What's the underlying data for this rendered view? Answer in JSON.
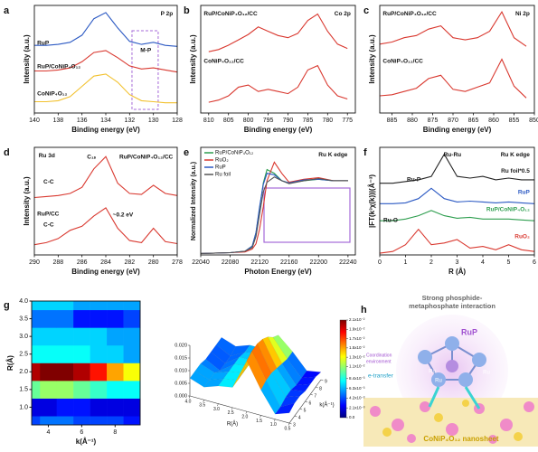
{
  "chart_data": [
    {
      "panel": "a",
      "type": "line",
      "xlabel": "Binding energy (eV)",
      "ylabel": "Intensity (a.u.)",
      "x": [
        140,
        139,
        138,
        137,
        136,
        135,
        134,
        133,
        132,
        131,
        130,
        129,
        128
      ],
      "xlim": [
        140,
        128
      ],
      "ylim": [
        0,
        10.5
      ],
      "xticks": [
        140,
        138,
        136,
        134,
        132,
        130,
        128
      ],
      "annotations": [
        "P 2p",
        "M-P"
      ],
      "series": [
        {
          "name": "RuP",
          "color": "#2b59c3",
          "values": [
            6.6,
            6.6,
            6.7,
            6.9,
            7.6,
            9.2,
            9.8,
            8.3,
            7.0,
            6.7,
            6.9,
            6.6,
            6.5
          ]
        },
        {
          "name": "RuP/CoNiP₄O₁₂",
          "color": "#d9382f",
          "values": [
            4.1,
            4.1,
            4.2,
            4.4,
            5.0,
            5.9,
            6.1,
            5.4,
            4.6,
            4.3,
            4.4,
            4.2,
            4.0
          ]
        },
        {
          "name": "CoNiP₄O₁₂",
          "color": "#f2c12e",
          "values": [
            1.1,
            1.1,
            1.2,
            1.6,
            2.6,
            3.6,
            3.8,
            3.0,
            1.8,
            1.2,
            1.1,
            1.0,
            1.0
          ]
        }
      ]
    },
    {
      "panel": "b",
      "type": "line",
      "xlabel": "Binding energy (eV)",
      "ylabel": "Intensity (a.u.)",
      "x": [
        810,
        807.5,
        805,
        802.5,
        800,
        797.5,
        795,
        792.5,
        790,
        787.5,
        785,
        782.5,
        780,
        777.5,
        775
      ],
      "xlim": [
        812,
        773
      ],
      "ylim": [
        0,
        10
      ],
      "xticks": [
        810,
        805,
        800,
        795,
        790,
        785,
        780,
        775
      ],
      "annotations": [
        "Co 2p"
      ],
      "series": [
        {
          "name": "RuP/CoNiP₄O₁₂/CC",
          "color": "#d9382f",
          "values": [
            5.7,
            5.9,
            6.3,
            6.8,
            7.3,
            8.0,
            7.6,
            7.2,
            7.0,
            7.4,
            8.6,
            9.2,
            7.6,
            6.4,
            6.0
          ]
        },
        {
          "name": "CoNiP₄O₁₂/CC",
          "color": "#d9382f",
          "values": [
            1.0,
            1.2,
            1.6,
            2.4,
            2.6,
            2.0,
            2.2,
            2.0,
            1.8,
            2.4,
            4.0,
            4.4,
            2.6,
            1.6,
            1.3
          ]
        }
      ]
    },
    {
      "panel": "c",
      "type": "line",
      "xlabel": "Binding energy (eV)",
      "ylabel": "Intensity (a.u.)",
      "x": [
        888,
        885,
        882,
        879,
        876,
        873,
        870,
        867,
        864,
        861,
        858,
        855,
        852
      ],
      "xlim": [
        888,
        850
      ],
      "ylim": [
        0,
        10
      ],
      "xticks": [
        885,
        880,
        875,
        870,
        865,
        860,
        855,
        850
      ],
      "annotations": [
        "Ni 2p"
      ],
      "series": [
        {
          "name": "RuP/CoNiP₄O₁₂/CC",
          "color": "#d9382f",
          "values": [
            6.4,
            6.6,
            7.0,
            7.2,
            7.8,
            8.1,
            7.0,
            6.8,
            7.0,
            7.6,
            9.4,
            7.0,
            6.2
          ]
        },
        {
          "name": "CoNiP₄O₁₂/CC",
          "color": "#d9382f",
          "values": [
            1.6,
            1.7,
            2.0,
            2.3,
            3.2,
            3.5,
            2.2,
            2.0,
            2.4,
            2.8,
            5.0,
            2.5,
            1.4
          ]
        }
      ]
    },
    {
      "panel": "d",
      "type": "line",
      "xlabel": "Binding energy (eV)",
      "ylabel": "Intensity (a.u.)",
      "x": [
        290,
        289,
        288,
        287,
        286,
        285,
        284,
        283,
        282,
        281,
        280,
        279,
        278
      ],
      "xlim": [
        290,
        278
      ],
      "ylim": [
        0,
        10.5
      ],
      "xticks": [
        290,
        288,
        286,
        284,
        282,
        280,
        278
      ],
      "annotations": [
        "Ru 3d",
        "C₁ₛ",
        "C-C",
        "C-C",
        "~0.2 eV"
      ],
      "series": [
        {
          "name": "RuP/CoNiP₄O₁₂/CC",
          "color": "#d9382f",
          "values": [
            5.6,
            5.7,
            5.8,
            6.0,
            6.6,
            8.4,
            9.6,
            7.0,
            6.0,
            5.9,
            6.8,
            6.0,
            5.8
          ]
        },
        {
          "name": "RuP/CC",
          "color": "#d9382f",
          "values": [
            1.0,
            1.2,
            1.6,
            2.4,
            2.8,
            3.8,
            4.6,
            2.6,
            1.4,
            1.2,
            2.6,
            1.3,
            1.1
          ]
        }
      ]
    },
    {
      "panel": "e",
      "type": "line",
      "xlabel": "Photon Energy (eV)",
      "ylabel": "Normalized Intensity (a.u.)",
      "x": [
        22040,
        22080,
        22100,
        22110,
        22115,
        22120,
        22125,
        22130,
        22140,
        22150,
        22160,
        22180,
        22200,
        22220,
        22240
      ],
      "xlim": [
        22040,
        22250
      ],
      "ylim": [
        0,
        1.45
      ],
      "xticks": [
        22040,
        22080,
        22120,
        22160,
        22200,
        22240
      ],
      "annotations": [
        "Ru K edge"
      ],
      "legend": "upper left",
      "series": [
        {
          "name": "RuP/CoNiP₄O₁₂",
          "color": "#2e9e4f",
          "values": [
            0.02,
            0.03,
            0.05,
            0.12,
            0.3,
            0.62,
            0.97,
            1.15,
            1.1,
            1.0,
            0.97,
            1.0,
            1.02,
            1.0,
            1.0
          ]
        },
        {
          "name": "RuO₂",
          "color": "#d9382f",
          "values": [
            0.02,
            0.03,
            0.04,
            0.08,
            0.15,
            0.35,
            0.65,
            1.0,
            1.25,
            1.1,
            0.98,
            1.02,
            1.04,
            1.0,
            1.0
          ]
        },
        {
          "name": "RuP",
          "color": "#2b59c3",
          "values": [
            0.02,
            0.03,
            0.05,
            0.12,
            0.3,
            0.65,
            0.95,
            1.1,
            1.08,
            1.0,
            0.97,
            1.01,
            1.02,
            1.0,
            1.0
          ]
        },
        {
          "name": "Ru foil",
          "color": "#555555",
          "values": [
            0.02,
            0.03,
            0.05,
            0.1,
            0.25,
            0.55,
            0.85,
            0.98,
            1.05,
            1.0,
            0.96,
            1.0,
            1.03,
            1.0,
            1.0
          ]
        }
      ]
    },
    {
      "panel": "f",
      "type": "line",
      "xlabel": "R (Å)",
      "ylabel": "|FT(k³χ(k))|(Å⁻³)",
      "x": [
        0,
        0.5,
        1,
        1.5,
        2,
        2.5,
        3,
        3.5,
        4,
        4.5,
        5,
        5.5,
        6
      ],
      "xlim": [
        0,
        6
      ],
      "ylim": [
        0,
        6.3
      ],
      "xticks": [
        0,
        1,
        2,
        3,
        4,
        5,
        6
      ],
      "annotations": [
        "Ru-Ru",
        "Ru-P",
        "Ru-O",
        "Ru K edge"
      ],
      "series": [
        {
          "name": "Ru foil*0.5",
          "color": "#222222",
          "values": [
            4.2,
            4.2,
            4.3,
            4.4,
            4.6,
            5.9,
            4.6,
            4.5,
            4.6,
            4.4,
            4.5,
            4.4,
            4.4
          ]
        },
        {
          "name": "RuP",
          "color": "#2b59c3",
          "values": [
            3.0,
            3.0,
            3.05,
            3.3,
            3.9,
            3.3,
            3.1,
            3.15,
            3.1,
            3.05,
            3.1,
            3.05,
            3.0
          ]
        },
        {
          "name": "RuP/CoNiP₄O₁₂",
          "color": "#2e9e4f",
          "values": [
            2.0,
            2.0,
            2.1,
            2.3,
            2.6,
            2.3,
            2.15,
            2.2,
            2.1,
            2.1,
            2.1,
            2.05,
            2.0
          ]
        },
        {
          "name": "RuO₂",
          "color": "#d9382f",
          "values": [
            0.1,
            0.2,
            0.6,
            1.5,
            0.6,
            0.7,
            0.9,
            0.4,
            0.5,
            0.3,
            0.6,
            0.3,
            0.2
          ]
        }
      ]
    },
    {
      "panel": "g",
      "type": "heatmap",
      "xlabel": "k(Å⁻¹)",
      "ylabel": "R(Å)",
      "x": [
        3,
        4,
        5,
        6,
        7,
        8,
        9
      ],
      "y": [
        0.5,
        1.0,
        1.5,
        2.0,
        2.5,
        3.0,
        3.5,
        4.0
      ],
      "xlim": [
        3,
        9.5
      ],
      "ylim": [
        0.5,
        4.0
      ],
      "xticks": [
        4,
        6,
        8
      ],
      "yticks": [
        {
          "value": 1,
          "label": "1.0"
        },
        1.5,
        {
          "value": 2,
          "label": "2.0"
        },
        2.5,
        {
          "value": 3,
          "label": "3.0"
        },
        3.5,
        {
          "value": 4,
          "label": "4.0"
        }
      ],
      "values": [
        [
          0.004,
          0.005,
          0.005,
          0.004,
          0.004,
          0.004,
          0.003
        ],
        [
          0.002,
          0.002,
          0.003,
          0.003,
          0.002,
          0.002,
          0.002
        ],
        [
          0.01,
          0.011,
          0.011,
          0.01,
          0.009,
          0.008,
          0.008
        ],
        [
          0.02,
          0.021,
          0.021,
          0.02,
          0.018,
          0.015,
          0.013
        ],
        [
          0.008,
          0.008,
          0.008,
          0.008,
          0.007,
          0.007,
          0.006
        ],
        [
          0.007,
          0.007,
          0.007,
          0.007,
          0.007,
          0.006,
          0.006
        ],
        [
          0.005,
          0.005,
          0.005,
          0.003,
          0.003,
          0.003,
          0.004
        ],
        [
          0.007,
          0.007,
          0.007,
          0.006,
          0.006,
          0.006,
          0.006
        ]
      ],
      "zlim": [
        0,
        0.021
      ],
      "zticks": [
        {
          "value": 0.021,
          "label": "2.1x10⁻²"
        },
        {
          "value": 0.019,
          "label": "1.9x10⁻²"
        },
        {
          "value": 0.017,
          "label": "1.7x10⁻²"
        },
        {
          "value": 0.015,
          "label": "1.5x10⁻²"
        },
        {
          "value": 0.013,
          "label": "1.3x10⁻²"
        },
        {
          "value": 0.011,
          "label": "1.1x10⁻²"
        },
        {
          "value": 0.0084,
          "label": "8.4x10⁻³"
        },
        {
          "value": 0.0063,
          "label": "6.3x10⁻³"
        },
        {
          "value": 0.0042,
          "label": "4.2x10⁻³"
        },
        {
          "value": 0.0021,
          "label": "2.1x10⁻³"
        },
        {
          "value": 0,
          "label": "0.0"
        }
      ]
    },
    {
      "type": "surface",
      "xlabel": "k(Å⁻¹)",
      "ylabel": "R(Å)",
      "x": [
        3,
        4,
        5,
        6,
        7,
        8,
        9
      ],
      "y": [
        0.5,
        1.0,
        1.5,
        2.0,
        2.5,
        3.0,
        3.5,
        4.0
      ],
      "xlim": [
        3,
        9
      ],
      "ylim": [
        0.5,
        4.0
      ],
      "xticks": [
        3,
        4,
        5,
        6,
        7,
        8,
        9
      ],
      "yticks": [
        {
          "value": 4,
          "label": "4.0"
        },
        3.5,
        {
          "value": 3,
          "label": "3.0"
        },
        2.5,
        {
          "value": 2,
          "label": "2.0"
        },
        1.5,
        {
          "value": 1,
          "label": "1.0"
        },
        0.5
      ],
      "values": [
        [
          0.004,
          0.005,
          0.005,
          0.004,
          0.004,
          0.004,
          0.003
        ],
        [
          0.002,
          0.002,
          0.003,
          0.003,
          0.002,
          0.002,
          0.002
        ],
        [
          0.01,
          0.011,
          0.011,
          0.01,
          0.009,
          0.008,
          0.008
        ],
        [
          0.02,
          0.021,
          0.021,
          0.02,
          0.018,
          0.015,
          0.013
        ],
        [
          0.008,
          0.008,
          0.008,
          0.008,
          0.007,
          0.007,
          0.006
        ],
        [
          0.007,
          0.007,
          0.007,
          0.007,
          0.007,
          0.006,
          0.006
        ],
        [
          0.005,
          0.005,
          0.005,
          0.003,
          0.003,
          0.003,
          0.004
        ],
        [
          0.007,
          0.007,
          0.007,
          0.006,
          0.006,
          0.006,
          0.006
        ]
      ],
      "zlim": [
        0,
        0.02
      ],
      "zticks": [
        {
          "value": 0,
          "label": "0.000"
        },
        {
          "value": 0.005,
          "label": "0.005"
        },
        {
          "value": 0.01,
          "label": "0.010"
        },
        {
          "value": 0.015,
          "label": "0.015"
        },
        {
          "value": 0.02,
          "label": "0.020"
        }
      ]
    }
  ],
  "illustration": {
    "panel": "h",
    "title_lines": [
      "Strong phosphide-",
      "metaphosphate interaction"
    ],
    "center_label": "RuP",
    "side_lines": [
      "Coordination",
      "environment"
    ],
    "transfer_label": "e-transfer",
    "atom_labels": [
      "Ru",
      "Ru",
      "Ru"
    ],
    "base_label": "CoNiP₄O₁₂ nanosheet"
  }
}
